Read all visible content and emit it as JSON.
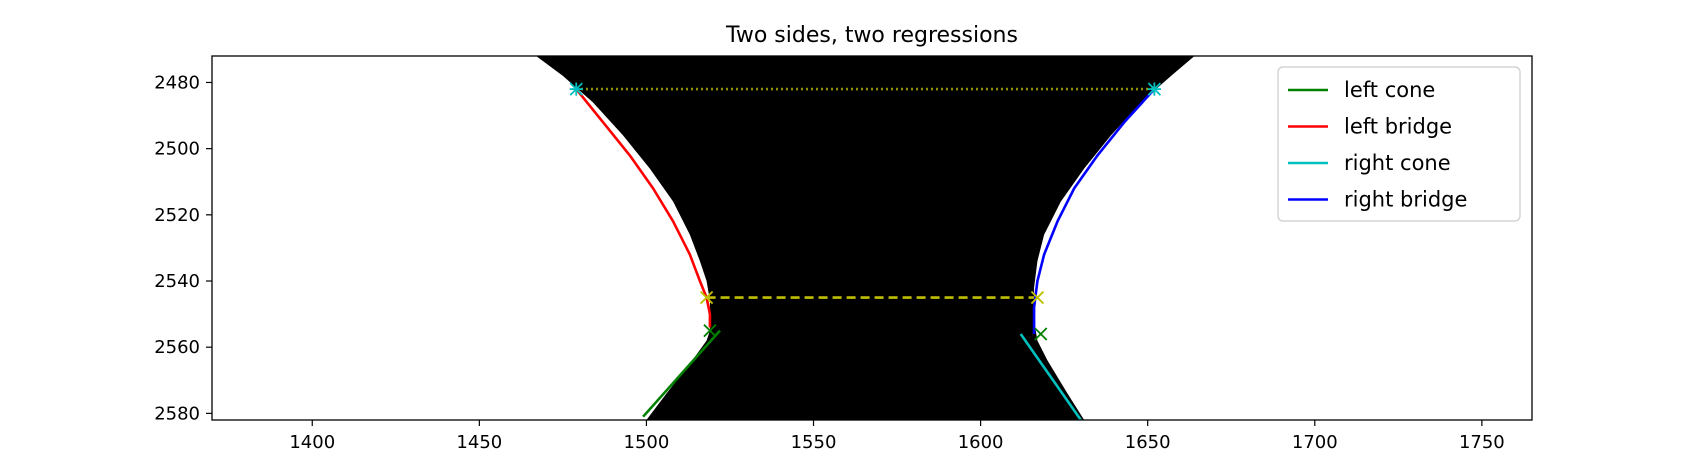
{
  "chart_data": {
    "type": "line",
    "title": "Two sides, two regressions",
    "xlabel": "",
    "ylabel": "",
    "xlim": [
      1370,
      1765
    ],
    "ylim": [
      2582,
      2472
    ],
    "y_inverted": true,
    "grid": false,
    "x_ticks": [
      1400,
      1450,
      1500,
      1550,
      1600,
      1650,
      1700,
      1750
    ],
    "y_ticks": [
      2480,
      2500,
      2520,
      2540,
      2560,
      2580
    ],
    "background_image": "binary black silhouette of a necked region (neck between cone and bridge)",
    "legend": {
      "placement": "upper right",
      "entries": [
        {
          "label": "left cone",
          "color": "#008000"
        },
        {
          "label": "left bridge",
          "color": "#ff0000"
        },
        {
          "label": "right cone",
          "color": "#00bfbf"
        },
        {
          "label": "right bridge",
          "color": "#0000ff"
        }
      ]
    },
    "series": [
      {
        "name": "left cone",
        "color": "#008000",
        "style": "solid",
        "x": [
          1499,
          1522
        ],
        "y": [
          2581,
          2555
        ]
      },
      {
        "name": "left bridge",
        "color": "#ff0000",
        "style": "solid",
        "x": [
          1479,
          1487,
          1495,
          1502,
          1508,
          1513,
          1516,
          1518,
          1519,
          1519
        ],
        "y": [
          2482,
          2492,
          2502,
          2512,
          2522,
          2532,
          2540,
          2545,
          2550,
          2554
        ]
      },
      {
        "name": "right cone",
        "color": "#00bfbf",
        "style": "solid",
        "x": [
          1612,
          1630
        ],
        "y": [
          2556,
          2582
        ]
      },
      {
        "name": "right bridge",
        "color": "#0000ff",
        "style": "solid",
        "x": [
          1652,
          1643,
          1635,
          1628,
          1623,
          1619,
          1617,
          1616,
          1616
        ],
        "y": [
          2482,
          2492,
          2502,
          2512,
          2522,
          2532,
          2540,
          2548,
          2556
        ]
      }
    ],
    "reference_lines": [
      {
        "color": "#bfbf00",
        "style": "dotted",
        "x": [
          1479,
          1652
        ],
        "y": [
          2482,
          2482
        ]
      },
      {
        "color": "#bfbf00",
        "style": "dashed",
        "x": [
          1518,
          1617
        ],
        "y": [
          2545,
          2545
        ]
      }
    ],
    "markers": [
      {
        "symbol": "x",
        "color": "#008000",
        "x": 1519,
        "y": 2555
      },
      {
        "symbol": "x",
        "color": "#008000",
        "x": 1618,
        "y": 2556
      },
      {
        "symbol": "x",
        "color": "#bfbf00",
        "x": 1518,
        "y": 2545
      },
      {
        "symbol": "x",
        "color": "#bfbf00",
        "x": 1617,
        "y": 2545
      },
      {
        "symbol": "star",
        "color": "#00bfbf",
        "x": 1479,
        "y": 2482
      },
      {
        "symbol": "star",
        "color": "#00bfbf",
        "x": 1652,
        "y": 2482
      }
    ],
    "silhouette": {
      "color": "#000000",
      "left_edge": {
        "x": [
          1467,
          1475,
          1484,
          1493,
          1501,
          1508,
          1513,
          1516,
          1518,
          1519,
          1519,
          1518,
          1513,
          1506,
          1500
        ],
        "y": [
          2472,
          2478,
          2486,
          2496,
          2506,
          2516,
          2526,
          2534,
          2540,
          2546,
          2555,
          2558,
          2565,
          2574,
          2582
        ]
      },
      "right_edge": {
        "x": [
          1664,
          1657,
          1648,
          1639,
          1631,
          1624,
          1619,
          1617,
          1616,
          1616,
          1617,
          1620,
          1626,
          1631
        ],
        "y": [
          2472,
          2478,
          2486,
          2496,
          2506,
          2516,
          2526,
          2534,
          2542,
          2552,
          2558,
          2564,
          2574,
          2582
        ]
      }
    }
  }
}
